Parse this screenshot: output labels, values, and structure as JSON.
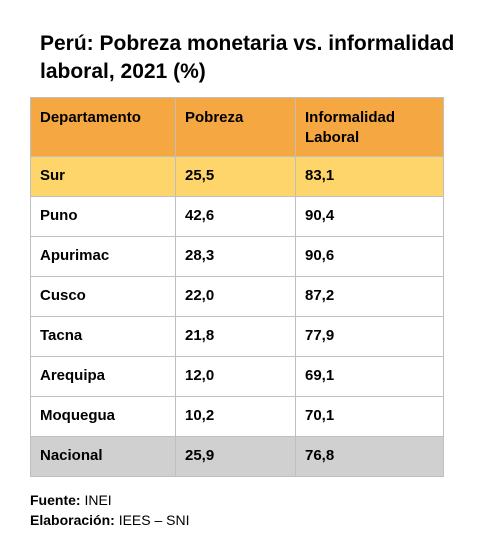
{
  "chart_data": {
    "type": "table",
    "title": "Perú: Pobreza monetaria vs. informalidad laboral, 2021 (%)",
    "columns": [
      "Departamento",
      "Pobreza",
      "Informalidad Laboral"
    ],
    "rows": [
      [
        "Sur",
        "25,5",
        "83,1"
      ],
      [
        "Puno",
        "42,6",
        "90,4"
      ],
      [
        "Apurimac",
        "28,3",
        "90,6"
      ],
      [
        "Cusco",
        "22,0",
        "87,2"
      ],
      [
        "Tacna",
        "21,8",
        "77,9"
      ],
      [
        "Arequipa",
        "12,0",
        "69,1"
      ],
      [
        "Moquegua",
        "10,2",
        "70,1"
      ],
      [
        "Nacional",
        "25,9",
        "76,8"
      ]
    ]
  },
  "footer": {
    "source_label": "Fuente:",
    "source_value": "INEI",
    "credit_label": "Elaboración:",
    "credit_value": "IEES – SNI"
  },
  "colors": {
    "header": "#f5a742",
    "highlight_row": "#fdd56a",
    "total_row": "#d0d0d0",
    "border": "#bfbfbf"
  }
}
